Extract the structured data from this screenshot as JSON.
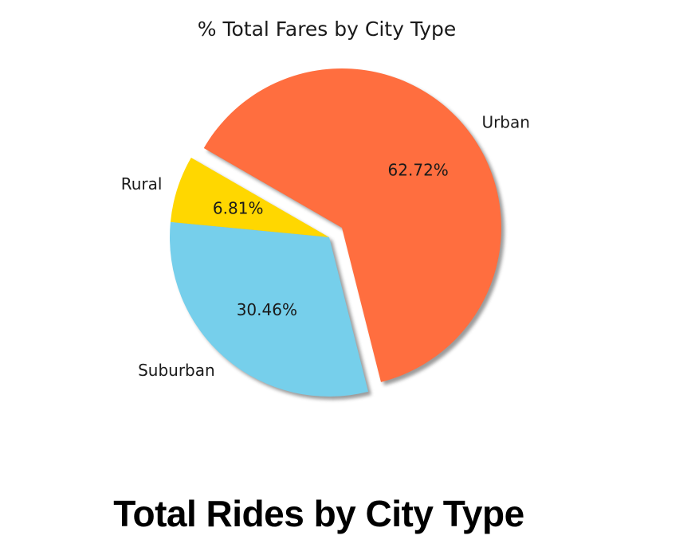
{
  "chart_data": {
    "type": "pie",
    "title": "% Total Fares by City Type",
    "categories": [
      "Rural",
      "Suburban",
      "Urban"
    ],
    "values": [
      6.81,
      30.46,
      62.72
    ],
    "value_labels": [
      "6.81%",
      "30.46%",
      "62.72%"
    ],
    "colors": [
      "#FFD700",
      "#76CFEB",
      "#FF6E3F"
    ],
    "explode": [
      0,
      0,
      0.1
    ],
    "shadow": true,
    "start_angle": 150,
    "legend": false
  },
  "next_section": {
    "heading": "Total Rides by City Type"
  }
}
